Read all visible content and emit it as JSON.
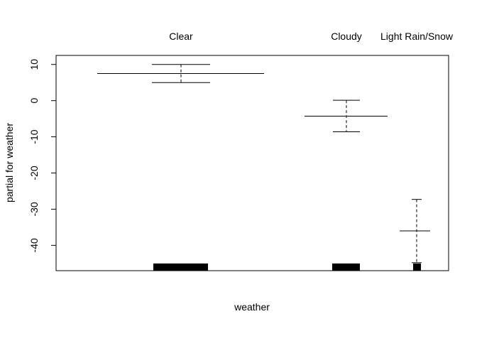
{
  "chart_data": {
    "type": "termplot",
    "xlabel": "weather",
    "ylabel": "partial for weather",
    "ylim": [
      -47,
      12.5
    ],
    "y_ticks": [
      10,
      0,
      -10,
      -20,
      -30,
      -40
    ],
    "categories": [
      {
        "name": "Clear",
        "effect": 7.5,
        "upper": 10,
        "lower": 5,
        "rug": [
          -45.8,
          -45.8
        ]
      },
      {
        "name": "Cloudy",
        "effect": -4.3,
        "upper": 0.1,
        "lower": -8.6,
        "rug": [
          -45.8,
          -45.8
        ]
      },
      {
        "name": "Light Rain/Snow",
        "effect": -36,
        "upper": -27.3,
        "lower": -44.8,
        "rug": [
          -45.8,
          -45.8
        ]
      }
    ],
    "grid": false,
    "legend": "none"
  }
}
